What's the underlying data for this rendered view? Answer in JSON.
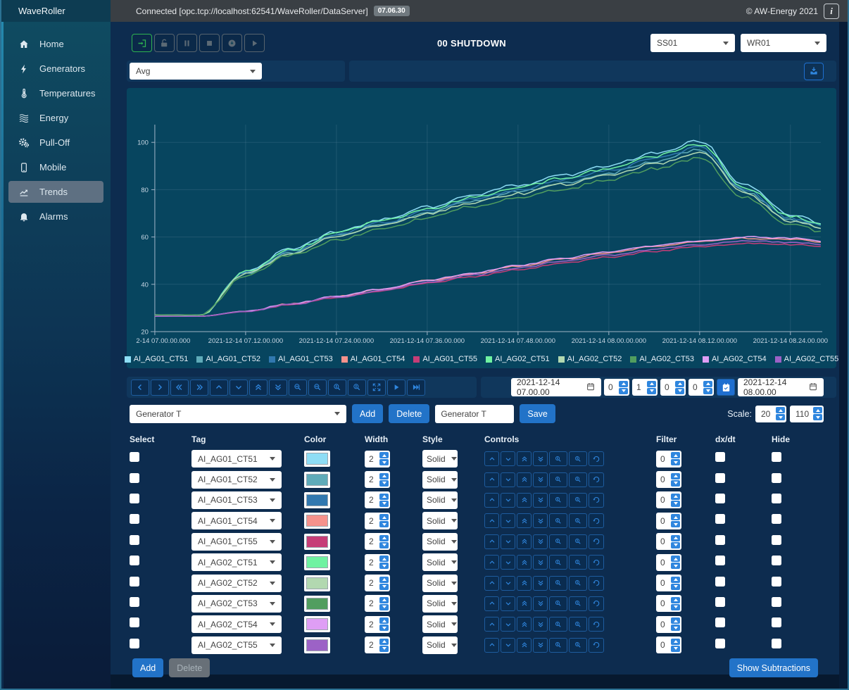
{
  "topbar": {
    "brand": "WaveRoller",
    "connection": "Connected [opc.tcp://localhost:62541/WaveRoller/DataServer]",
    "version_badge": "07.06.30",
    "copyright": "© AW-Energy 2021",
    "info_icon": "i"
  },
  "sidebar": {
    "items": [
      {
        "label": "Home",
        "icon": "home",
        "selected": false
      },
      {
        "label": "Generators",
        "icon": "bolt",
        "selected": false
      },
      {
        "label": "Temperatures",
        "icon": "thermometer",
        "selected": false
      },
      {
        "label": "Energy",
        "icon": "waves",
        "selected": false
      },
      {
        "label": "Pull-Off",
        "icon": "gears",
        "selected": false
      },
      {
        "label": "Mobile",
        "icon": "mobile",
        "selected": false
      },
      {
        "label": "Trends",
        "icon": "trend",
        "selected": true
      },
      {
        "label": "Alarms",
        "icon": "bell",
        "selected": false
      }
    ]
  },
  "toolbar": {
    "status_title": "00 SHUTDOWN",
    "station_select": "SS01",
    "device_select": "WR01",
    "avg_select": "Avg",
    "transport": [
      {
        "name": "connect-button",
        "icon": "login",
        "enabled": true
      },
      {
        "name": "unlock-button",
        "icon": "unlock",
        "enabled": false
      },
      {
        "name": "pause-button",
        "icon": "pause",
        "enabled": false
      },
      {
        "name": "stop-button",
        "icon": "stop",
        "enabled": false
      },
      {
        "name": "history-button",
        "icon": "history",
        "enabled": false
      },
      {
        "name": "play-button",
        "icon": "play",
        "enabled": false
      }
    ]
  },
  "chart_data": {
    "type": "line",
    "title": "",
    "xlabel": "",
    "ylabel": "",
    "x_unit": "minutes after 2021-12-14 07:00",
    "x": [
      0,
      6,
      12,
      18,
      24,
      30,
      36,
      42,
      48,
      54,
      60,
      66,
      72,
      78,
      84,
      90
    ],
    "x_tick_labels": [
      "2-14 07.00.00.000",
      "2021-12-14 07.12.00.000",
      "2021-12-14 07.24.00.000",
      "2021-12-14 07.36.00.000",
      "2021-12-14 07.48.00.000",
      "2021-12-14 08.00.00.000",
      "2021-12-14 08.12.00.000",
      "2021-12-14 08.24.00.000"
    ],
    "y_ticks": [
      20,
      40,
      60,
      80,
      100
    ],
    "ylim": [
      20,
      108
    ],
    "grid": true,
    "legend_position": "bottom",
    "series": [
      {
        "name": "AI_AG01_CT51",
        "color": "#8EDDF5",
        "values": [
          27,
          27,
          45.6,
          55,
          62.2,
          67.4,
          72.6,
          77.8,
          81.9,
          86,
          90.2,
          95.4,
          100.5,
          81.9,
          69.5,
          64.3
        ]
      },
      {
        "name": "AI_AG01_CT52",
        "color": "#5FABB9",
        "values": [
          27,
          27,
          44.7,
          53.5,
          60.4,
          65.3,
          70.2,
          75.2,
          79.1,
          83,
          87,
          91.9,
          96.8,
          79.1,
          67.3,
          62.4
        ]
      },
      {
        "name": "AI_AG01_CT53",
        "color": "#3178AF",
        "values": [
          27,
          27,
          45,
          54,
          61,
          66,
          71,
          76,
          80,
          84,
          88,
          93,
          98,
          80,
          68,
          63
        ]
      },
      {
        "name": "AI_AG01_CT54",
        "color": "#F5928C",
        "values": [
          26.5,
          26.5,
          28.6,
          31.7,
          34.8,
          37.8,
          41.5,
          44.5,
          47.6,
          50.7,
          53.3,
          55.9,
          58,
          59.5,
          59,
          57.4
        ]
      },
      {
        "name": "AI_AG01_CT55",
        "color": "#C63D77",
        "values": [
          26.5,
          26.5,
          28.4,
          31.3,
          34.2,
          37.1,
          40.5,
          43.3,
          46.2,
          49.1,
          51.5,
          53.9,
          55.9,
          57.3,
          56.8,
          55.4
        ]
      },
      {
        "name": "AI_AG02_CT51",
        "color": "#6FF2A1",
        "values": [
          27,
          27,
          45.3,
          54.5,
          61.6,
          66.7,
          71.8,
          76.8,
          80.9,
          85,
          89,
          94.1,
          99.2,
          80.9,
          68.7,
          63.6
        ]
      },
      {
        "name": "AI_AG02_CT52",
        "color": "#B2D8B0",
        "values": [
          27,
          27,
          44.4,
          53.2,
          59.9,
          64.8,
          69.6,
          74.5,
          78.3,
          82.2,
          86.1,
          90.9,
          95.8,
          78.3,
          66.7,
          61.9
        ]
      },
      {
        "name": "AI_AG02_CT53",
        "color": "#519E5F",
        "values": [
          27,
          27,
          43.8,
          52.3,
          58.8,
          63.5,
          68.2,
          72.9,
          76.6,
          80.3,
          84.1,
          88.8,
          93.4,
          76.6,
          65.4,
          60.7
        ]
      },
      {
        "name": "AI_AG02_CT54",
        "color": "#DF9EF5",
        "values": [
          26.5,
          26.5,
          28.6,
          31.7,
          34.9,
          38,
          41.7,
          44.8,
          48,
          51.1,
          53.7,
          56.3,
          58.4,
          60,
          59.5,
          57.9
        ]
      },
      {
        "name": "AI_AG02_CT55",
        "color": "#9C62C6",
        "values": [
          26.5,
          26.5,
          28.5,
          31.5,
          34.5,
          37.4,
          40.9,
          43.9,
          46.9,
          49.9,
          52.3,
          54.8,
          56.8,
          58.3,
          57.8,
          56.3
        ]
      }
    ]
  },
  "nav_buttons": [
    {
      "name": "pan-left",
      "icon": "chevron-left"
    },
    {
      "name": "pan-right",
      "icon": "chevron-right"
    },
    {
      "name": "fast-left",
      "icon": "chevrons-left"
    },
    {
      "name": "fast-right",
      "icon": "chevrons-right"
    },
    {
      "name": "pan-up",
      "icon": "chevron-up"
    },
    {
      "name": "pan-down",
      "icon": "chevron-down"
    },
    {
      "name": "fast-up",
      "icon": "chevrons-up"
    },
    {
      "name": "fast-down",
      "icon": "chevrons-down"
    },
    {
      "name": "zoom-in-x",
      "icon": "zoom-x"
    },
    {
      "name": "zoom-out-x",
      "icon": "zoom-x"
    },
    {
      "name": "zoom-in-y",
      "icon": "zoom-y"
    },
    {
      "name": "zoom-out-y",
      "icon": "zoom-y"
    },
    {
      "name": "fit-view",
      "icon": "fit"
    },
    {
      "name": "play-trend",
      "icon": "play"
    },
    {
      "name": "jump-to-end",
      "icon": "skip-end"
    }
  ],
  "range": {
    "start": "2021-12-14 07.00.00",
    "end": "2021-12-14 08.00.00",
    "steppers": [
      "0",
      "1",
      "0",
      "0"
    ]
  },
  "preset": {
    "select_value": "Generator T",
    "add_label": "Add",
    "delete_label": "Delete",
    "name_value": "Generator T",
    "save_label": "Save",
    "scale_label": "Scale:",
    "scale_min": "20",
    "scale_max": "110"
  },
  "table": {
    "headers": [
      "Select",
      "Tag",
      "Color",
      "Width",
      "Style",
      "Controls",
      "Filter",
      "dx/dt",
      "Hide"
    ],
    "row_controls": [
      {
        "name": "shift-up",
        "icon": "chevron-up"
      },
      {
        "name": "shift-down",
        "icon": "chevron-down"
      },
      {
        "name": "scale-up",
        "icon": "chevrons-up"
      },
      {
        "name": "scale-down",
        "icon": "chevrons-down"
      },
      {
        "name": "zoom-in-y",
        "icon": "zoom-y"
      },
      {
        "name": "zoom-out-y",
        "icon": "zoom-y"
      },
      {
        "name": "reset",
        "icon": "undo"
      }
    ],
    "rows": [
      {
        "tag": "AI_AG01_CT51",
        "color": "#8EDDF5",
        "width": "2",
        "style": "Solid",
        "filter": "0"
      },
      {
        "tag": "AI_AG01_CT52",
        "color": "#5FABB9",
        "width": "2",
        "style": "Solid",
        "filter": "0"
      },
      {
        "tag": "AI_AG01_CT53",
        "color": "#3178AF",
        "width": "2",
        "style": "Solid",
        "filter": "0"
      },
      {
        "tag": "AI_AG01_CT54",
        "color": "#F5928C",
        "width": "2",
        "style": "Solid",
        "filter": "0"
      },
      {
        "tag": "AI_AG01_CT55",
        "color": "#C63D77",
        "width": "2",
        "style": "Solid",
        "filter": "0"
      },
      {
        "tag": "AI_AG02_CT51",
        "color": "#6FF2A1",
        "width": "2",
        "style": "Solid",
        "filter": "0"
      },
      {
        "tag": "AI_AG02_CT52",
        "color": "#B2D8B0",
        "width": "2",
        "style": "Solid",
        "filter": "0"
      },
      {
        "tag": "AI_AG02_CT53",
        "color": "#519E5F",
        "width": "2",
        "style": "Solid",
        "filter": "0"
      },
      {
        "tag": "AI_AG02_CT54",
        "color": "#DF9EF5",
        "width": "2",
        "style": "Solid",
        "filter": "0"
      },
      {
        "tag": "AI_AG02_CT55",
        "color": "#9C62C6",
        "width": "2",
        "style": "Solid",
        "filter": "0"
      }
    ]
  },
  "footer": {
    "add_label": "Add",
    "delete_label": "Delete",
    "show_subtractions_label": "Show Subtractions"
  }
}
